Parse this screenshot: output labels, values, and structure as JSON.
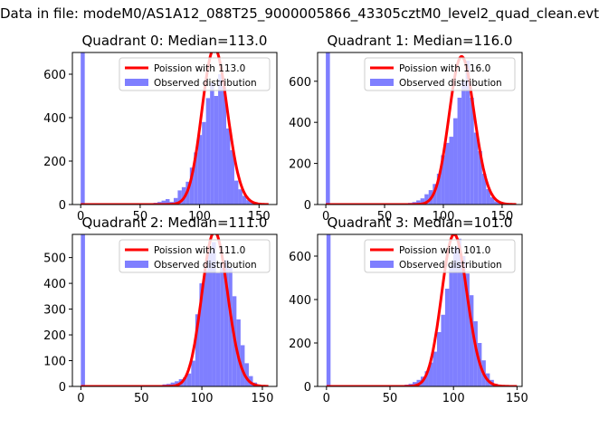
{
  "figure": {
    "suptitle": "Data in file: modeM0/AS1A12_088T25_9000005866_43305cztM0_level2_quad_clean.evt"
  },
  "colors": {
    "hist": "#7f7fff",
    "poisson": "#ff0000",
    "poisson_light": "#ff8a8a"
  },
  "chart_data": [
    {
      "type": "bar",
      "title": "Quadrant 0: Median=113.0",
      "median": 113.0,
      "xlim": [
        -7,
        165
      ],
      "ylim": [
        0,
        700
      ],
      "xticks": [
        0,
        50,
        100,
        150
      ],
      "yticks": [
        0,
        200,
        400,
        600
      ],
      "legend": {
        "placement": "top-right",
        "entries": [
          "Poission with 113.0",
          "Observed distribution"
        ]
      },
      "series": [
        {
          "name": "Observed distribution",
          "kind": "histogram",
          "bin_width": 3.4,
          "bins": [
            0,
            51,
            54.4,
            57.8,
            61.2,
            64.6,
            68,
            71.4,
            74.8,
            78.2,
            81.6,
            85,
            88.4,
            91.8,
            95.2,
            98.6,
            102,
            105.4,
            108.8,
            112.2,
            115.6,
            119,
            122.4,
            125.8,
            129.2,
            132.6,
            136,
            139.4,
            142.8,
            146.2,
            149.6
          ],
          "values": [
            700,
            2,
            3,
            5,
            8,
            12,
            18,
            25,
            12,
            30,
            65,
            80,
            105,
            170,
            240,
            320,
            380,
            490,
            560,
            500,
            600,
            540,
            350,
            250,
            110,
            70,
            40,
            20,
            10,
            5,
            2
          ]
        },
        {
          "name": "Poission with 113.0",
          "kind": "curve",
          "lambda": 113.0,
          "scale": 720,
          "x_range": [
            0,
            158
          ]
        }
      ]
    },
    {
      "type": "bar",
      "title": "Quadrant 1: Median=116.0",
      "median": 116.0,
      "xlim": [
        -7,
        167
      ],
      "ylim": [
        0,
        740
      ],
      "xticks": [
        0,
        50,
        100,
        150
      ],
      "yticks": [
        0,
        200,
        400,
        600
      ],
      "legend": {
        "placement": "top-right",
        "entries": [
          "Poission with 116.0",
          "Observed distribution"
        ]
      },
      "series": [
        {
          "name": "Observed distribution",
          "kind": "histogram",
          "bin_width": 3.5,
          "bins": [
            0,
            63,
            66.5,
            70,
            73.5,
            77,
            80.5,
            84,
            87.5,
            91,
            94.5,
            98,
            101.5,
            105,
            108.5,
            112,
            115.5,
            119,
            122.5,
            126,
            129.5,
            133,
            136.5,
            140,
            143.5,
            147,
            150.5
          ],
          "values": [
            740,
            3,
            5,
            8,
            12,
            20,
            30,
            50,
            70,
            100,
            150,
            240,
            300,
            330,
            420,
            520,
            600,
            700,
            520,
            350,
            260,
            150,
            75,
            35,
            15,
            6,
            2
          ]
        },
        {
          "name": "Poission with 116.0",
          "kind": "curve",
          "lambda": 116.0,
          "scale": 720,
          "x_range": [
            0,
            162
          ]
        }
      ]
    },
    {
      "type": "bar",
      "title": "Quadrant 2: Median=111.0",
      "median": 111.0,
      "xlim": [
        -7,
        162
      ],
      "ylim": [
        0,
        590
      ],
      "xticks": [
        0,
        50,
        100,
        150
      ],
      "yticks": [
        0,
        100,
        200,
        300,
        400,
        500
      ],
      "legend": {
        "placement": "top-right",
        "entries": [
          "Poission with 111.0",
          "Observed distribution"
        ]
      },
      "series": [
        {
          "name": "Observed distribution",
          "kind": "histogram",
          "bin_width": 3.4,
          "bins": [
            0,
            64,
            67.4,
            70.8,
            74.2,
            77.6,
            81,
            84.4,
            87.8,
            91.2,
            94.6,
            98,
            101.4,
            104.8,
            108.2,
            111.6,
            115,
            118.4,
            121.8,
            125.2,
            128.6,
            132,
            135.4,
            138.8,
            142.2,
            145.6,
            149
          ],
          "values": [
            590,
            5,
            8,
            10,
            15,
            20,
            28,
            35,
            50,
            100,
            280,
            400,
            450,
            520,
            560,
            440,
            480,
            490,
            460,
            350,
            260,
            160,
            90,
            40,
            15,
            6,
            2
          ]
        },
        {
          "name": "Poission with 111.0",
          "kind": "curve",
          "lambda": 111.0,
          "scale": 600,
          "x_range": [
            0,
            155
          ]
        }
      ]
    },
    {
      "type": "bar",
      "title": "Quadrant 3: Median=101.0",
      "median": 101.0,
      "xlim": [
        -7,
        154
      ],
      "ylim": [
        0,
        700
      ],
      "xticks": [
        0,
        50,
        100,
        150
      ],
      "yticks": [
        0,
        200,
        400,
        600
      ],
      "legend": {
        "placement": "top-right",
        "entries": [
          "Poission with 101.0",
          "Observed distribution"
        ]
      },
      "series": [
        {
          "name": "Observed distribution",
          "kind": "histogram",
          "bin_width": 3.2,
          "bins": [
            0,
            55,
            58.2,
            61.4,
            64.6,
            67.8,
            71,
            74.2,
            77.4,
            80.6,
            83.8,
            87,
            90.2,
            93.4,
            96.6,
            99.8,
            103,
            106.2,
            109.4,
            112.6,
            115.8,
            119,
            122.2,
            125.4,
            128.6,
            131.8,
            135,
            138.2
          ],
          "values": [
            700,
            3,
            5,
            8,
            12,
            20,
            30,
            45,
            70,
            110,
            160,
            250,
            330,
            450,
            560,
            640,
            680,
            600,
            520,
            420,
            300,
            200,
            120,
            60,
            30,
            12,
            5,
            2
          ]
        },
        {
          "name": "Poission with 101.0",
          "kind": "curve",
          "lambda": 101.0,
          "scale": 700,
          "x_range": [
            0,
            150
          ]
        }
      ]
    }
  ]
}
